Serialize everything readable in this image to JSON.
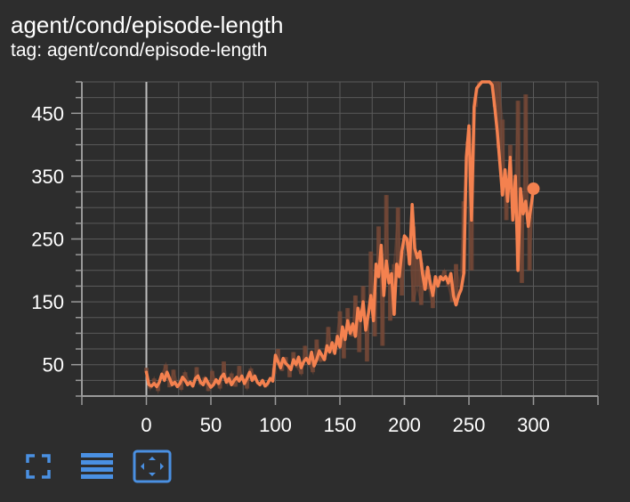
{
  "card": {
    "title": "agent/cond/episode-length",
    "subtitle": "tag: agent/cond/episode-length"
  },
  "toolbar": {
    "buttons": [
      {
        "icon": "fullscreen-icon"
      },
      {
        "icon": "log-scale-icon"
      },
      {
        "icon": "fit-domain-icon"
      }
    ],
    "active_color": "#4a90e2"
  },
  "colors": {
    "background": "#2d2d2d",
    "grid": "#5a5a5a",
    "axis": "#9a9a9a",
    "zero_line": "#bdbdbd",
    "smoothed": "#f4814f",
    "raw": "#7a4a37",
    "text": "#ffffff"
  },
  "chart_data": {
    "type": "line",
    "title": "",
    "xlabel": "",
    "ylabel": "",
    "xlim": [
      -50,
      350
    ],
    "ylim": [
      0,
      500
    ],
    "x_ticks": [
      0,
      50,
      100,
      150,
      200,
      250,
      300
    ],
    "y_ticks": [
      50,
      150,
      250,
      350,
      450
    ],
    "grid": true,
    "legend": "none",
    "series": [
      {
        "role": "raw",
        "x": [
          0,
          3,
          6,
          9,
          12,
          15,
          18,
          21,
          24,
          27,
          30,
          33,
          36,
          39,
          42,
          45,
          48,
          51,
          54,
          57,
          60,
          63,
          66,
          69,
          72,
          75,
          78,
          81,
          84,
          87,
          90,
          93,
          96,
          99,
          102,
          105,
          108,
          111,
          114,
          117,
          120,
          123,
          126,
          129,
          132,
          135,
          138,
          141,
          144,
          147,
          150,
          153,
          156,
          159,
          162,
          165,
          168,
          171,
          174,
          177,
          180,
          183,
          186,
          189,
          192,
          195,
          198,
          201,
          204,
          207,
          210,
          213,
          216,
          219,
          222,
          225,
          228,
          231,
          234,
          237,
          240,
          243,
          246,
          249,
          252,
          255,
          258,
          261,
          264,
          267,
          270,
          273,
          276,
          279,
          282,
          285,
          288,
          291,
          294,
          297,
          300
        ],
        "y": [
          45,
          12,
          28,
          8,
          35,
          50,
          14,
          42,
          20,
          10,
          38,
          24,
          15,
          46,
          18,
          30,
          8,
          40,
          22,
          12,
          55,
          20,
          36,
          15,
          48,
          25,
          12,
          44,
          30,
          18,
          22,
          15,
          28,
          35,
          75,
          40,
          62,
          30,
          70,
          45,
          35,
          80,
          50,
          38,
          90,
          55,
          60,
          110,
          70,
          85,
          135,
          60,
          140,
          95,
          160,
          70,
          175,
          55,
          230,
          95,
          270,
          80,
          320,
          120,
          210,
          300,
          160,
          240,
          230,
          150,
          175,
          145,
          200,
          170,
          140,
          190,
          190,
          200,
          175,
          150,
          210,
          170,
          310,
          400,
          200,
          460,
          500,
          500,
          500,
          500,
          500,
          500,
          440,
          280,
          400,
          290,
          470,
          180,
          480,
          200,
          330
        ]
      },
      {
        "role": "smoothed",
        "x": [
          0,
          2,
          4,
          6,
          8,
          10,
          12,
          14,
          16,
          18,
          20,
          22,
          24,
          26,
          28,
          30,
          32,
          34,
          36,
          38,
          40,
          42,
          44,
          46,
          48,
          50,
          52,
          54,
          56,
          58,
          60,
          62,
          64,
          66,
          68,
          70,
          72,
          74,
          76,
          78,
          80,
          82,
          84,
          86,
          88,
          90,
          92,
          94,
          96,
          98,
          100,
          102,
          104,
          106,
          108,
          110,
          112,
          114,
          116,
          118,
          120,
          122,
          124,
          126,
          128,
          130,
          132,
          134,
          136,
          138,
          140,
          142,
          144,
          146,
          148,
          150,
          152,
          154,
          156,
          158,
          160,
          162,
          164,
          166,
          168,
          170,
          172,
          174,
          176,
          178,
          180,
          182,
          184,
          186,
          188,
          190,
          192,
          194,
          196,
          198,
          200,
          202,
          204,
          206,
          208,
          210,
          212,
          214,
          216,
          218,
          220,
          222,
          224,
          226,
          228,
          230,
          232,
          234,
          236,
          238,
          240,
          242,
          244,
          246,
          248,
          250,
          252,
          254,
          256,
          258,
          260,
          262,
          264,
          266,
          268,
          270,
          272,
          274,
          276,
          278,
          280,
          282,
          284,
          286,
          288,
          290,
          292,
          294,
          296,
          298,
          300
        ],
        "y": [
          38,
          18,
          16,
          20,
          15,
          22,
          35,
          25,
          38,
          28,
          18,
          22,
          15,
          20,
          30,
          25,
          18,
          22,
          16,
          28,
          32,
          22,
          18,
          28,
          20,
          14,
          18,
          26,
          20,
          30,
          35,
          22,
          28,
          18,
          25,
          30,
          24,
          32,
          20,
          28,
          38,
          25,
          32,
          22,
          18,
          25,
          16,
          20,
          28,
          24,
          65,
          55,
          45,
          60,
          52,
          48,
          42,
          58,
          50,
          62,
          45,
          55,
          60,
          52,
          70,
          48,
          58,
          72,
          65,
          58,
          80,
          70,
          85,
          68,
          95,
          78,
          110,
          90,
          120,
          100,
          115,
          95,
          140,
          120,
          150,
          105,
          130,
          160,
          120,
          210,
          190,
          240,
          160,
          215,
          180,
          195,
          130,
          210,
          190,
          230,
          255,
          250,
          210,
          305,
          235,
          220,
          230,
          195,
          170,
          205,
          180,
          160,
          190,
          175,
          190,
          185,
          190,
          180,
          195,
          160,
          145,
          160,
          170,
          195,
          380,
          430,
          280,
          460,
          490,
          495,
          500,
          500,
          500,
          500,
          495,
          460,
          420,
          370,
          320,
          360,
          310,
          380,
          280,
          350,
          200,
          330,
          290,
          310,
          270,
          300,
          330
        ]
      }
    ]
  }
}
